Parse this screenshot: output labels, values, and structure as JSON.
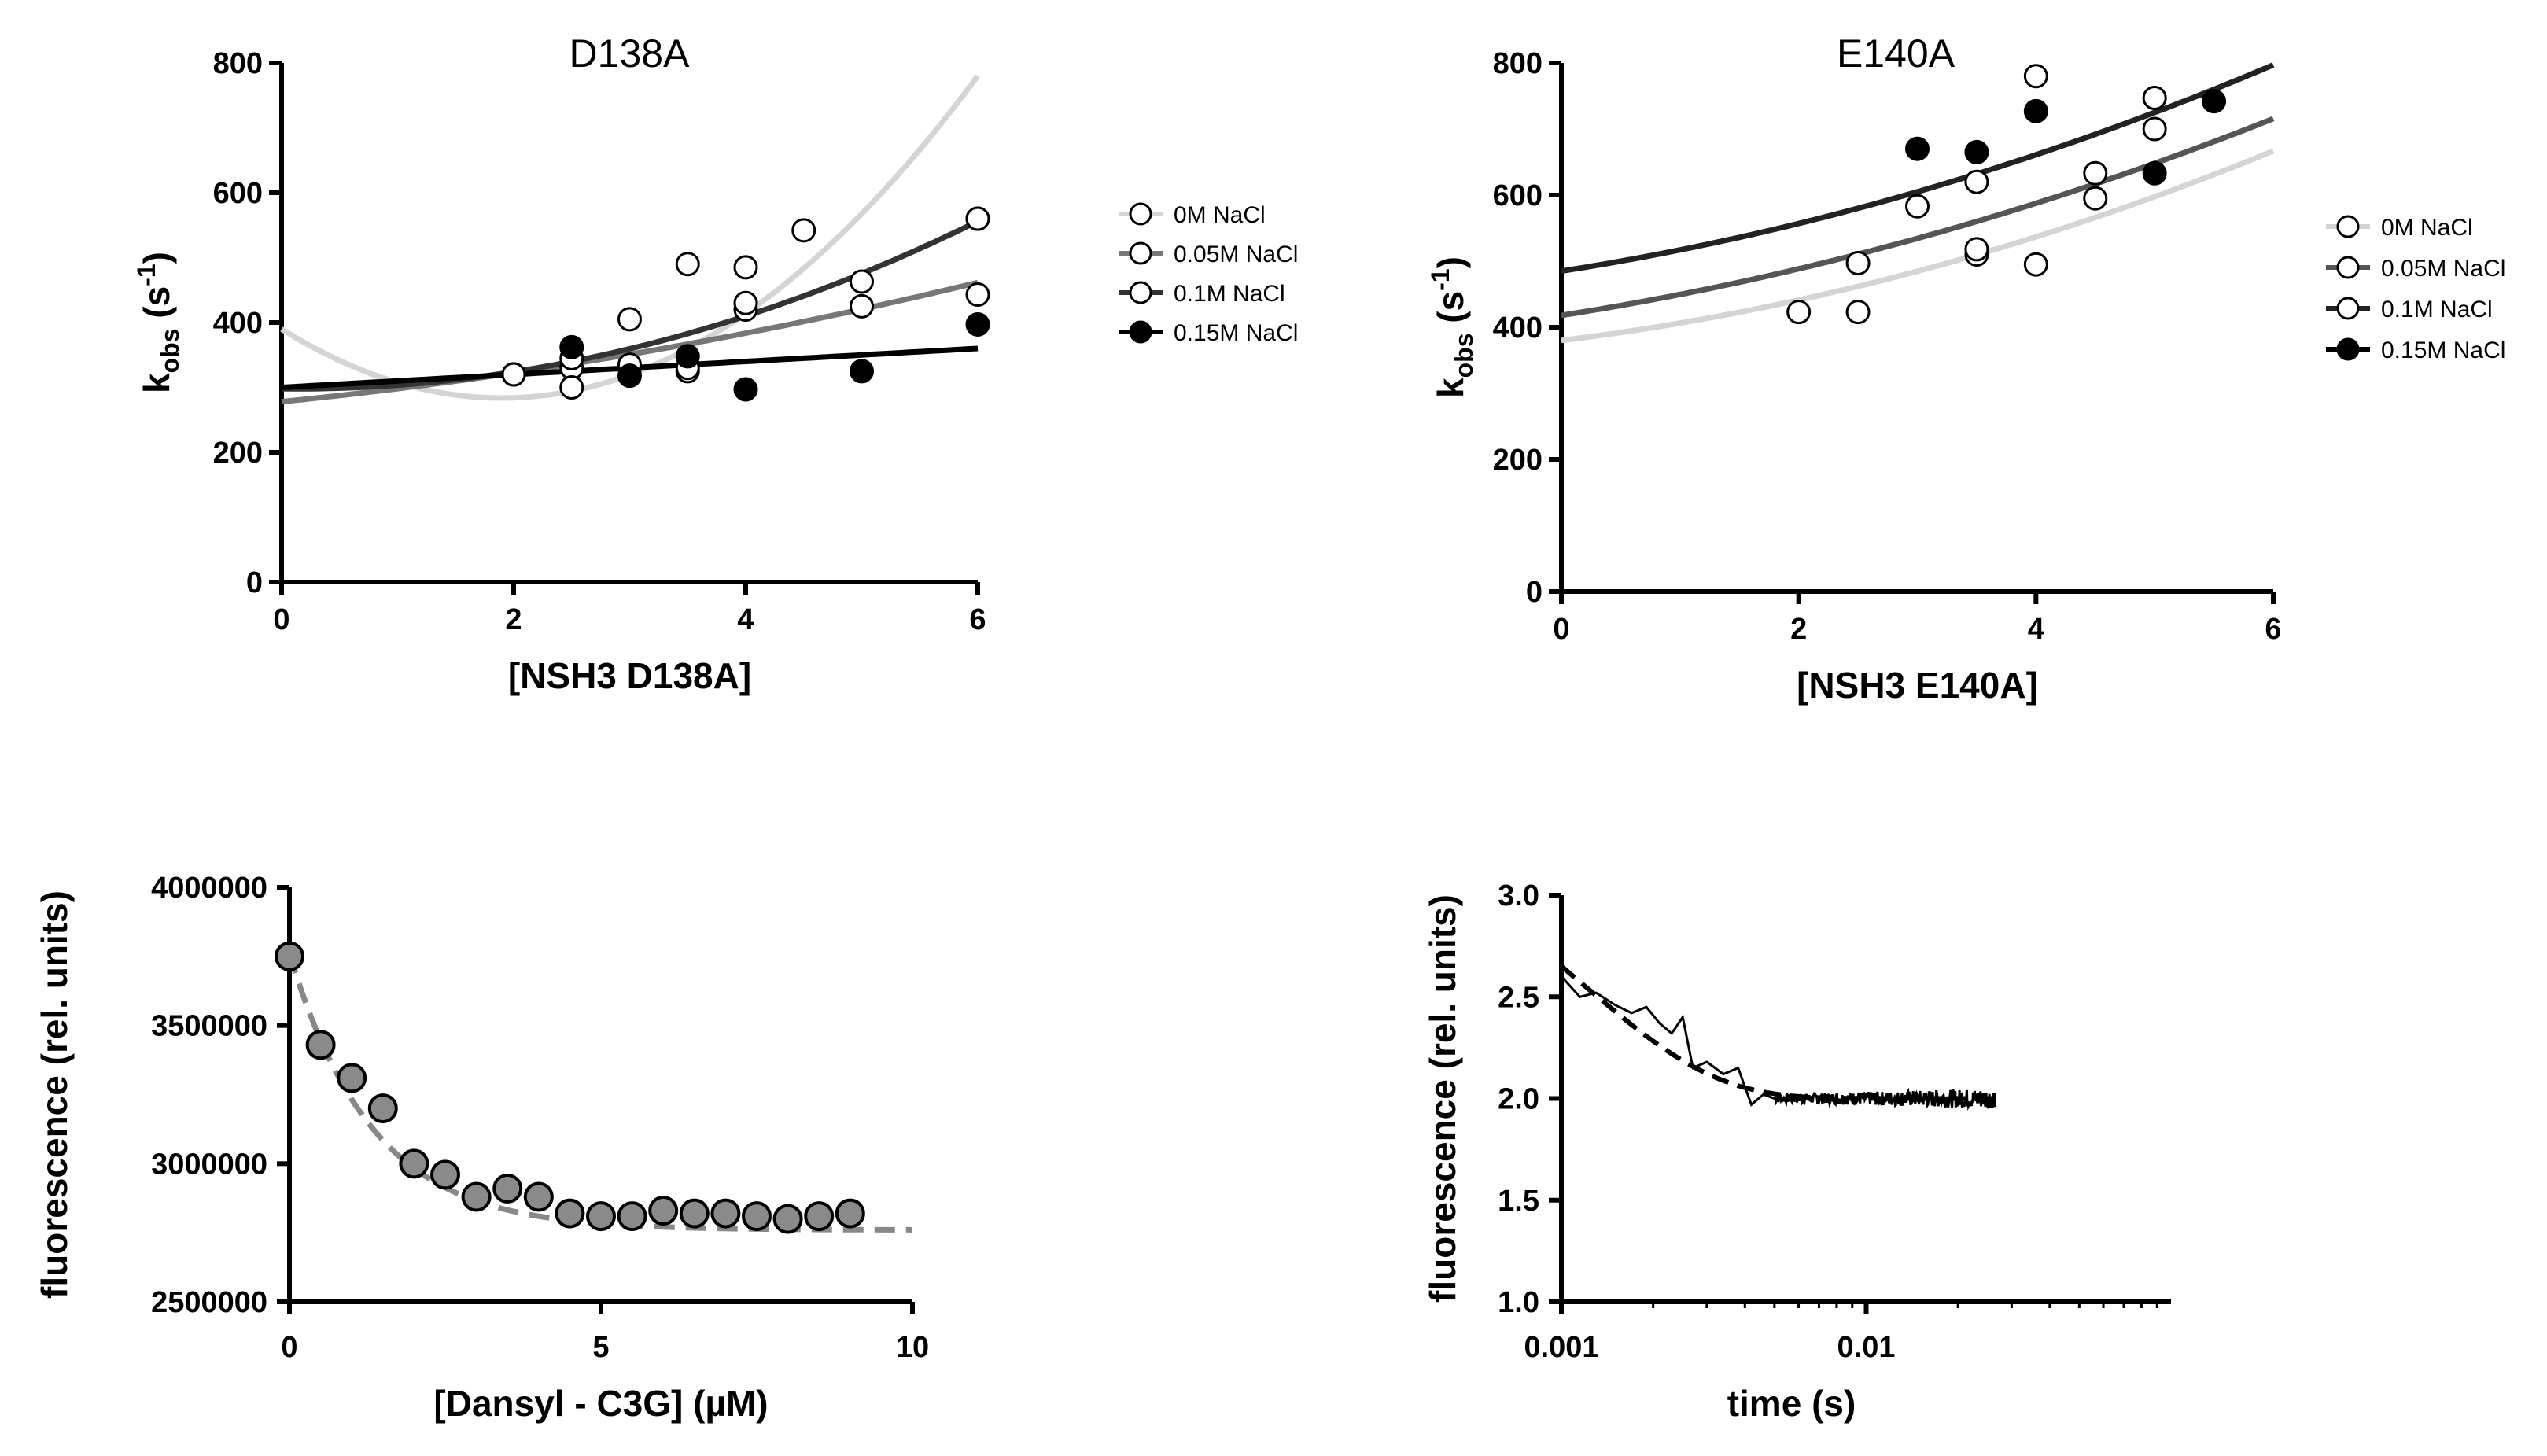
{
  "chart_data": [
    {
      "type": "scatter",
      "title": "D138A",
      "xlabel": "[NSH3 D138A]",
      "ylabel": "k",
      "ylabel_sub": "obs",
      "ylabel_unit_pre": " (s",
      "ylabel_unit_sup": "-1",
      "ylabel_unit_post": ")",
      "xlim": [
        0,
        6
      ],
      "ylim": [
        0,
        800
      ],
      "xticks": [
        0,
        2,
        4,
        6
      ],
      "yticks": [
        0,
        200,
        400,
        600,
        800
      ],
      "xtick_labels": [
        "0",
        "2",
        "4",
        "6"
      ],
      "ytick_labels": [
        "0",
        "200",
        "400",
        "600",
        "800"
      ],
      "legend_position": "right",
      "series": [
        {
          "name": "0M NaCl",
          "color": "#d4d4d4",
          "marker": "open",
          "points": [
            [
              2,
              320
            ],
            [
              2.5,
              330
            ],
            [
              3,
              405
            ],
            [
              3.5,
              490
            ],
            [
              4,
              485
            ],
            [
              4.5,
              542
            ],
            [
              6,
              560
            ]
          ],
          "fit": [
            0.0255,
            -0.0044,
            0.000397
          ]
        },
        {
          "name": "0.05M NaCl",
          "color": "#777777",
          "marker": "open",
          "points": [
            [
              2,
              320
            ],
            [
              2.5,
              300
            ],
            [
              3,
              330
            ],
            [
              3.5,
              325
            ],
            [
              4,
              420
            ],
            [
              5,
              425
            ],
            [
              6,
              443
            ]
          ],
          "fit": [
            0.00445,
            6e-05,
            7.8e-06
          ]
        },
        {
          "name": "0.1M NaCl",
          "color": "#333333",
          "marker": "open",
          "points": [
            [
              2.5,
              345
            ],
            [
              3,
              335
            ],
            [
              3.5,
              330
            ],
            [
              4,
              430
            ],
            [
              5,
              463
            ],
            [
              6,
              560
            ]
          ],
          "fit": [
            -0.05,
            0.00227,
            1.97e-05
          ]
        },
        {
          "name": "0.15M NaCl",
          "color": "#000000",
          "marker": "filled",
          "points": [
            [
              2.5,
              362
            ],
            [
              3,
              318
            ],
            [
              3.5,
              348
            ],
            [
              4,
              297
            ],
            [
              5,
              325
            ],
            [
              6,
              397
            ]
          ],
          "fit": [
            0.0,
            0.00333,
            0.0
          ]
        }
      ]
    },
    {
      "type": "scatter",
      "title": "E140A",
      "xlabel": "[NSH3 E140A]",
      "ylabel": "k",
      "ylabel_sub": "obs",
      "ylabel_unit_pre": " (s",
      "ylabel_unit_sup": "-1",
      "ylabel_unit_post": ")",
      "xlim": [
        0,
        6
      ],
      "ylim": [
        0,
        800
      ],
      "xticks": [
        0,
        2,
        4,
        6
      ],
      "yticks": [
        0,
        200,
        400,
        600,
        800
      ],
      "xtick_labels": [
        "0",
        "2",
        "4",
        "6"
      ],
      "ytick_labels": [
        "0",
        "200",
        "400",
        "600",
        "800"
      ],
      "legend_position": "right",
      "series": [
        {
          "name": "0M NaCl",
          "color": "#d4d4d4",
          "marker": "open",
          "points": [
            [
              2,
              423
            ],
            [
              2.5,
              423
            ],
            [
              3.5,
              510
            ],
            [
              4,
              495
            ],
            [
              4.5,
              595
            ],
            [
              5,
              700
            ]
          ],
          "fit": [
            0.000444,
            1.36e-05,
            0.00263
          ]
        },
        {
          "name": "0.05M NaCl",
          "color": "#555555",
          "marker": "open",
          "points": [
            [
              2.5,
              497
            ],
            [
              3,
              583
            ],
            [
              3.5,
              518
            ],
            [
              4.5,
              633
            ],
            [
              5,
              747
            ]
          ],
          "fit": [
            0.0,
            0.00178,
            0.00238
          ]
        },
        {
          "name": "0.1M NaCl",
          "color": "#222222",
          "marker": "open",
          "points": [
            [
              3.5,
              620
            ],
            [
              4,
              780
            ]
          ],
          "fit": [
            0.0,
            0.00206,
            0.00204
          ]
        },
        {
          "name": "0.15M NaCl",
          "color": "#000000",
          "marker": "filled",
          "points": [
            [
              3,
              670
            ],
            [
              3.5,
              665
            ],
            [
              4,
              727
            ],
            [
              5,
              633
            ],
            [
              5.5,
              742
            ]
          ],
          "fit": [
            0.0,
            0.0,
            0.0
          ]
        }
      ]
    },
    {
      "type": "scatter",
      "title": "",
      "xlabel": "[Dansyl - C3G] (µM)",
      "ylabel": "fluorescence (rel. units)",
      "xlim": [
        0,
        10
      ],
      "ylim": [
        2500000,
        4000000
      ],
      "xticks": [
        0,
        5,
        10
      ],
      "yticks": [
        2500000,
        3000000,
        3500000,
        4000000
      ],
      "xtick_labels": [
        "0",
        "5",
        "10"
      ],
      "ytick_labels": [
        "2500000",
        "3000000",
        "3500000",
        "4000000"
      ],
      "series": [
        {
          "name": "data",
          "color": "#888888",
          "marker": "filled-gray",
          "x": [
            0,
            0.5,
            1,
            1.5,
            2,
            2.5,
            3,
            3.5,
            4,
            4.5,
            5,
            5.5,
            6,
            6.5,
            7,
            7.5,
            8,
            8.5,
            9
          ],
          "y": [
            3750000,
            3430000,
            3310000,
            3200000,
            3000000,
            2960000,
            2880000,
            2910000,
            2880000,
            2820000,
            2810000,
            2810000,
            2830000,
            2820000,
            2820000,
            2810000,
            2800000,
            2810000,
            2820000
          ]
        },
        {
          "name": "fit",
          "color": "#888888",
          "style": "dashed",
          "fit_exp": {
            "plateau": 2760000,
            "span": 1000000,
            "k": 0.75
          }
        }
      ]
    },
    {
      "type": "line",
      "title": "",
      "xlabel": "time (s)",
      "ylabel": "fluorescence (rel. units)",
      "xscale": "log",
      "xlim": [
        0.001,
        0.1
      ],
      "ylim": [
        1.0,
        3.0
      ],
      "xticks": [
        0.001,
        0.01
      ],
      "yticks": [
        1.0,
        1.5,
        2.0,
        2.5,
        3.0
      ],
      "xtick_labels": [
        "0.001",
        "0.01"
      ],
      "ytick_labels": [
        "1.0",
        "1.5",
        "2.0",
        "2.5",
        "3.0"
      ],
      "series": [
        {
          "name": "trace",
          "color": "#000000",
          "style": "solid",
          "x_end": 0.0265,
          "y_plateau": 2.0,
          "noise": 0.05,
          "early": [
            [
              0.001,
              2.6
            ],
            [
              0.00115,
              2.5
            ],
            [
              0.0013,
              2.52
            ],
            [
              0.0015,
              2.46
            ],
            [
              0.0017,
              2.42
            ],
            [
              0.0019,
              2.45
            ],
            [
              0.0021,
              2.37
            ],
            [
              0.0023,
              2.32
            ],
            [
              0.0025,
              2.4
            ],
            [
              0.0027,
              2.15
            ],
            [
              0.003,
              2.18
            ],
            [
              0.0034,
              2.12
            ],
            [
              0.0038,
              2.15
            ],
            [
              0.0042,
              1.97
            ],
            [
              0.0046,
              2.02
            ],
            [
              0.005,
              2.0
            ]
          ]
        },
        {
          "name": "fit",
          "color": "#000000",
          "style": "dashed",
          "fit_exp": {
            "plateau": 2.0,
            "span": 0.65,
            "tau": 0.0012
          }
        }
      ]
    }
  ]
}
